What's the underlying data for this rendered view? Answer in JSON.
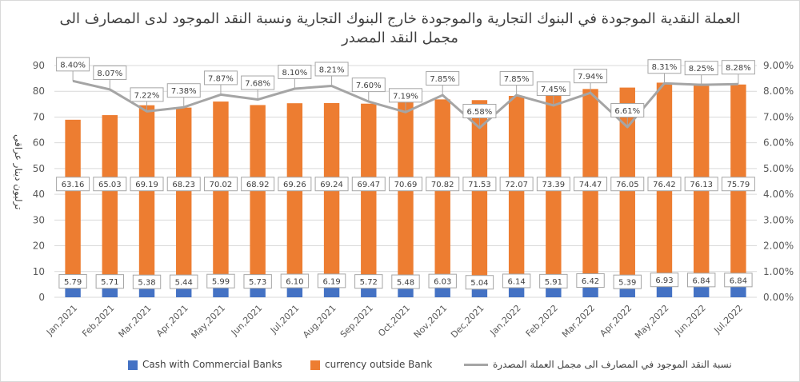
{
  "chart_data": {
    "type": "bar",
    "title": "العملة النقدية الموجودة في البنوك التجارية والموجودة خارج البنوك التجارية ونسبة النقد الموجود لدى المصارف الى",
    "subtitle": "مجمل النقد المصدر",
    "ylabel": "ترليون دينار عراقي",
    "ylim": [
      0,
      90
    ],
    "y_ticks": [
      "0",
      "10",
      "20",
      "30",
      "40",
      "50",
      "60",
      "70",
      "80",
      "90"
    ],
    "y2lim": [
      0,
      9
    ],
    "y2_ticks": [
      "0.00%",
      "1.00%",
      "2.00%",
      "3.00%",
      "4.00%",
      "5.00%",
      "6.00%",
      "7.00%",
      "8.00%",
      "9.00%"
    ],
    "categories": [
      "Jan,2021",
      "Feb,2021",
      "Mar,2021",
      "Apr,2021",
      "May,2021",
      "Jun,2021",
      "Jul,2021",
      "Aug,2021",
      "Sep,2021",
      "Oct,2021",
      "Nov,2021",
      "Dec,2021",
      "Jan,2022",
      "Feb,2022",
      "Mar,2022",
      "Apr,2022",
      "May,2022",
      "Jun,2022",
      "Jul,2022"
    ],
    "series": [
      {
        "name": "Cash with Commercial Banks",
        "color": "#4472c4",
        "type": "bar",
        "values": [
          5.79,
          5.71,
          5.38,
          5.44,
          5.99,
          5.73,
          6.1,
          6.19,
          5.72,
          5.48,
          6.03,
          5.04,
          6.14,
          5.91,
          6.42,
          5.39,
          6.93,
          6.84,
          6.84
        ],
        "labels": [
          "5.79",
          "5.71",
          "5.38",
          "5.44",
          "5.99",
          "5.73",
          "6.10",
          "6.19",
          "5.72",
          "5.48",
          "6.03",
          "5.04",
          "6.14",
          "5.91",
          "6.42",
          "5.39",
          "6.93",
          "6.84",
          "6.84"
        ]
      },
      {
        "name": "currency outside Bank",
        "color": "#ed7d31",
        "type": "bar",
        "values": [
          63.16,
          65.03,
          69.19,
          68.23,
          70.02,
          68.92,
          69.26,
          69.24,
          69.47,
          70.69,
          70.82,
          71.53,
          72.07,
          73.39,
          74.47,
          76.05,
          76.42,
          76.13,
          75.79
        ],
        "labels": [
          "63.16",
          "65.03",
          "69.19",
          "68.23",
          "70.02",
          "68.92",
          "69.26",
          "69.24",
          "69.47",
          "70.69",
          "70.82",
          "71.53",
          "72.07",
          "73.39",
          "74.47",
          "76.05",
          "76.42",
          "76.13",
          "75.79"
        ]
      },
      {
        "name": "نسبة النقد الموجود في المصارف الى مجمل العملة المصدرة",
        "color": "#a5a5a5",
        "type": "line",
        "axis": "right",
        "values": [
          8.4,
          8.07,
          7.22,
          7.38,
          7.87,
          7.68,
          8.1,
          8.21,
          7.6,
          7.19,
          7.85,
          6.58,
          7.85,
          7.45,
          7.94,
          6.61,
          8.31,
          8.25,
          8.28
        ],
        "labels": [
          "8.40%",
          "8.07%",
          "7.22%",
          "7.38%",
          "7.87%",
          "7.68%",
          "8.10%",
          "8.21%",
          "7.60%",
          "7.19%",
          "7.85%",
          "6.58%",
          "7.85%",
          "7.45%",
          "7.94%",
          "6.61%",
          "8.31%",
          "8.25%",
          "8.28%"
        ]
      }
    ],
    "stacked": true,
    "grid": true,
    "legend": "bottom"
  }
}
